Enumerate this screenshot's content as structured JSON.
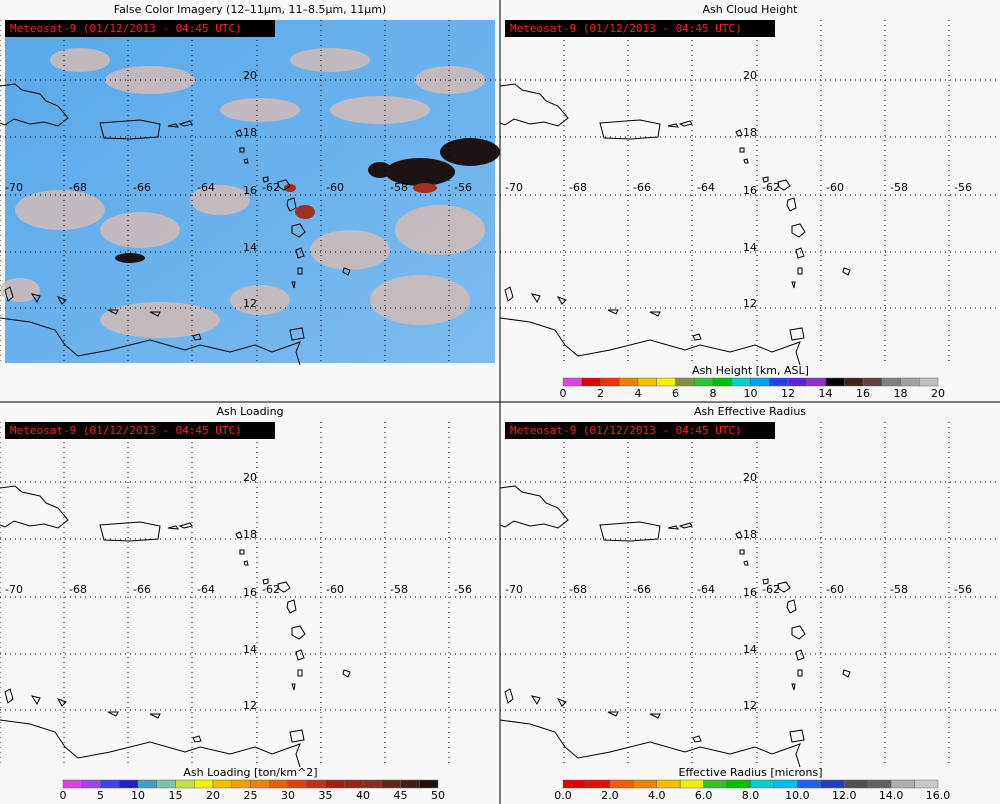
{
  "panels": [
    {
      "title": "False Color Imagery (12–11μm, 11–8.5μm, 11μm)",
      "stamp": "Meteosat-9  (01/12/2013 - 04:45 UTC)",
      "lat_labels": [
        "20",
        "18",
        "16",
        "14",
        "12"
      ],
      "lon_labels": [
        "-70",
        "-68",
        "-66",
        "-64",
        "-62",
        "-60",
        "-58",
        "-56"
      ]
    },
    {
      "title": "Ash Cloud Height",
      "stamp": "Meteosat-9  (01/12/2013 - 04:45 UTC)",
      "lat_labels": [
        "20",
        "18",
        "16",
        "14",
        "12"
      ],
      "lon_labels": [
        "-70",
        "-68",
        "-66",
        "-64",
        "-62",
        "-60",
        "-58",
        "-56"
      ],
      "colorbar": {
        "label": "Ash Height [km, ASL]",
        "ticks": [
          "0",
          "2",
          "4",
          "6",
          "8",
          "10",
          "12",
          "14",
          "16",
          "18",
          "20"
        ],
        "colors": [
          "#e040e0",
          "#e00000",
          "#f03000",
          "#f08000",
          "#f0c000",
          "#f0f000",
          "#809040",
          "#30c030",
          "#00c000",
          "#00d0d0",
          "#00a0f0",
          "#2040f0",
          "#6020e0",
          "#9030d0",
          "#000000",
          "#402018",
          "#604040",
          "#808080",
          "#a0a0a0",
          "#c0c0c0"
        ]
      }
    },
    {
      "title": "Ash Loading",
      "stamp": "Meteosat-9  (01/12/2013 - 04:45 UTC)",
      "lat_labels": [
        "20",
        "18",
        "16",
        "14",
        "12"
      ],
      "lon_labels": [
        "-70",
        "-68",
        "-66",
        "-64",
        "-62",
        "-60",
        "-58",
        "-56"
      ],
      "colorbar": {
        "label": "Ash Loading [ton/km^2]",
        "ticks": [
          "0",
          "5",
          "10",
          "15",
          "20",
          "25",
          "30",
          "35",
          "40",
          "45",
          "50"
        ],
        "colors": [
          "#e040e0",
          "#a040f0",
          "#4040f0",
          "#2020c0",
          "#40a0c0",
          "#80c0b0",
          "#c0e040",
          "#f0f000",
          "#f0c000",
          "#f0a000",
          "#f08000",
          "#e06000",
          "#e04000",
          "#c03020",
          "#a02010",
          "#902818",
          "#803020",
          "#602818",
          "#402018",
          "#201010"
        ]
      }
    },
    {
      "title": "Ash Effective Radius",
      "stamp": "Meteosat-9  (01/12/2013 - 04:45 UTC)",
      "lat_labels": [
        "20",
        "18",
        "16",
        "14",
        "12"
      ],
      "lon_labels": [
        "-70",
        "-68",
        "-66",
        "-64",
        "-62",
        "-60",
        "-58",
        "-56"
      ],
      "colorbar": {
        "label": "Effective Radius [microns]",
        "ticks": [
          "0.0",
          "2.0",
          "4.0",
          "6.0",
          "8.0",
          "10.0",
          "12.0",
          "14.0",
          "16.0"
        ],
        "colors": [
          "#e00000",
          "#e01000",
          "#f06000",
          "#f08000",
          "#f0c000",
          "#f0f000",
          "#30c030",
          "#00c000",
          "#00d0d0",
          "#00c0f0",
          "#2060f0",
          "#2040c0",
          "#505050",
          "#606060",
          "#b0b0b0",
          "#c8c8c8"
        ]
      }
    }
  ]
}
